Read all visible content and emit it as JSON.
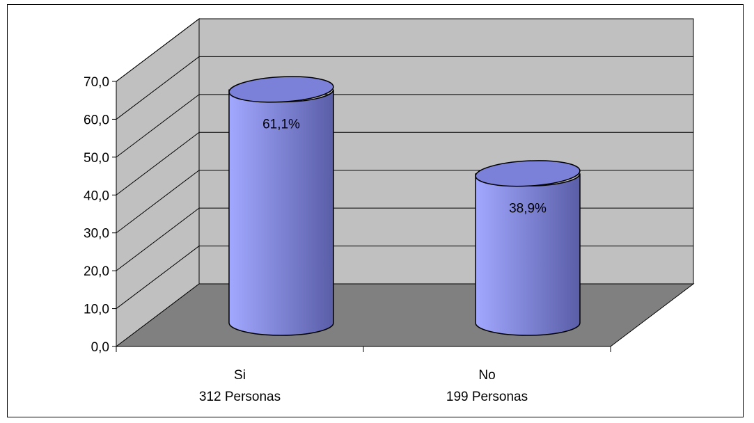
{
  "chart_data": {
    "type": "bar",
    "style": "3d-cylinder",
    "title": "",
    "xlabel": "",
    "ylabel": "",
    "ylim": [
      0,
      70
    ],
    "yticks": [
      "0,0",
      "10,0",
      "20,0",
      "30,0",
      "40,0",
      "50,0",
      "60,0",
      "70,0"
    ],
    "categories": [
      {
        "label": "Si",
        "sublabel": "312 Personas"
      },
      {
        "label": "No",
        "sublabel": "199 Personas"
      }
    ],
    "values": [
      61.1,
      38.9
    ],
    "data_labels": [
      "61,1%",
      "38,9%"
    ],
    "grid": true,
    "legend": "none",
    "colors": {
      "bar_light": "#a2a8ff",
      "bar_dark": "#5a5ea8",
      "bar_top": "#7b80d8",
      "back_wall": "#c0c0c0",
      "floor": "#808080",
      "side_wall": "#c0c0c0"
    }
  }
}
